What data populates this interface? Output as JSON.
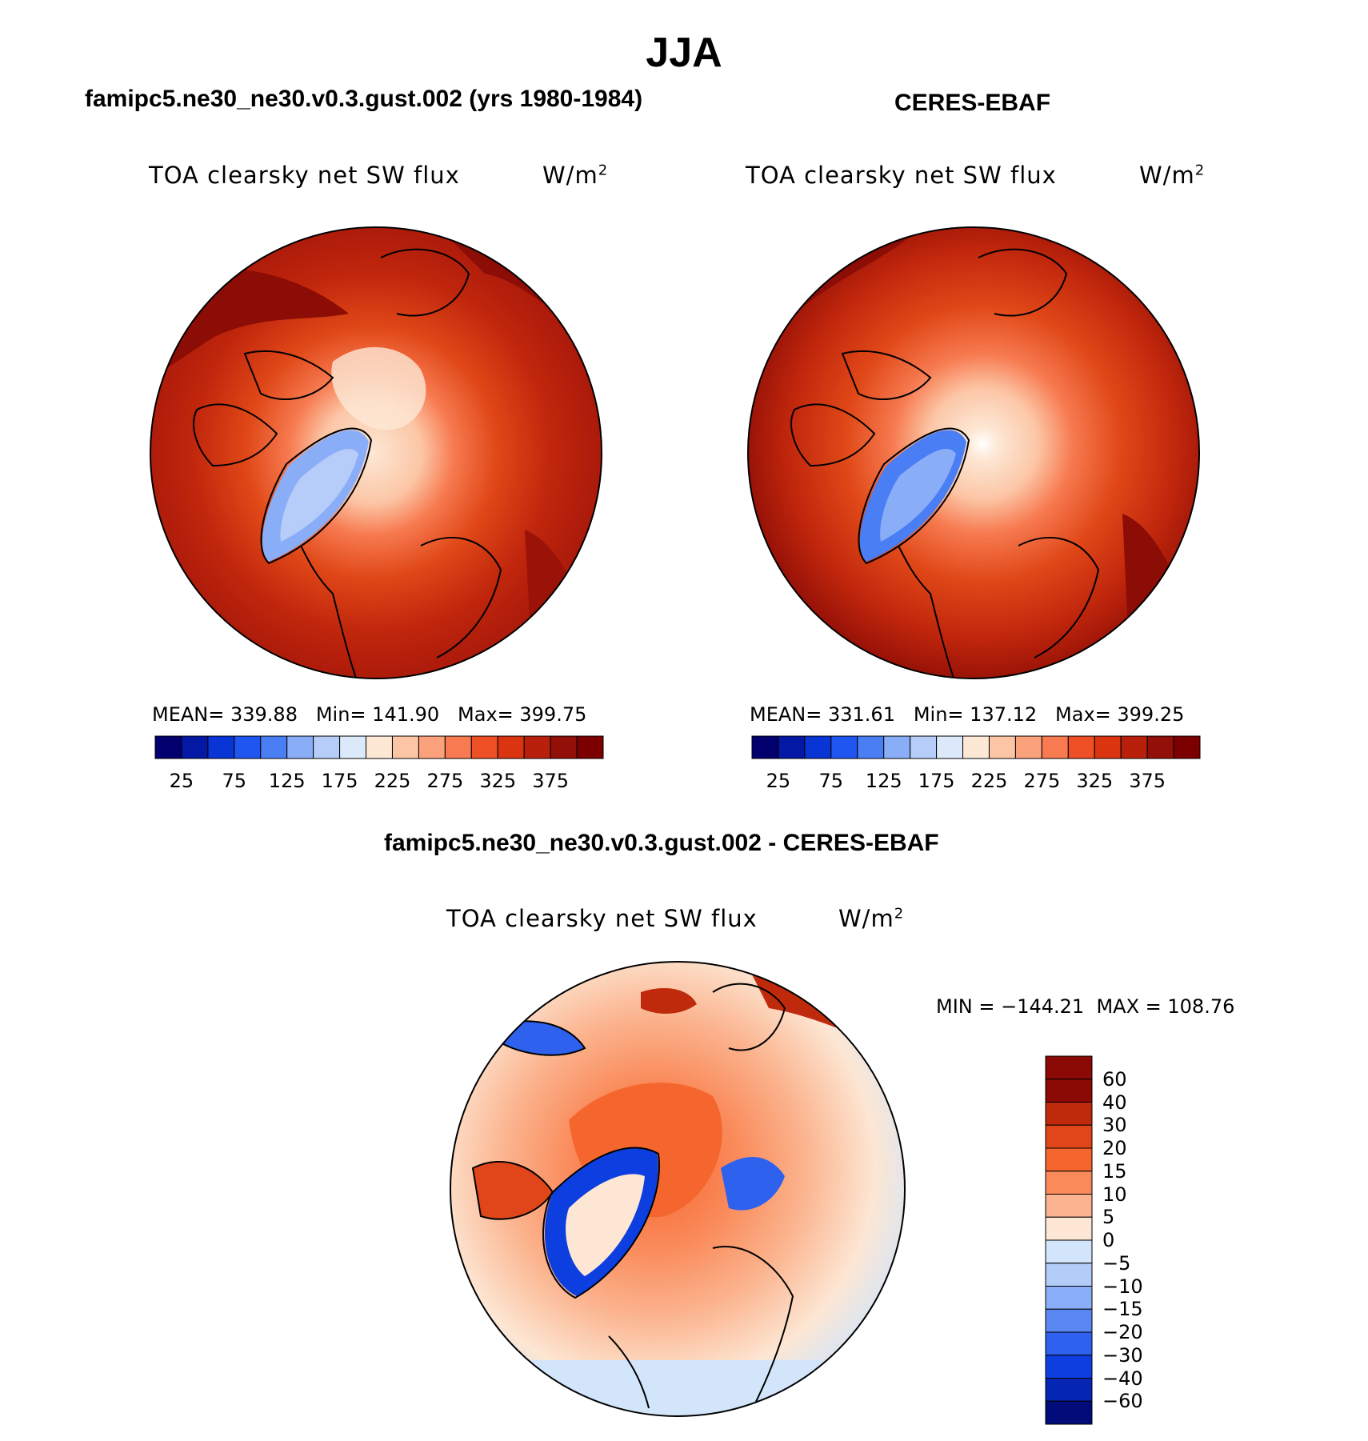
{
  "title": "JJA",
  "panels": [
    {
      "label": "famipc5.ne30_ne30.v0.3.gust.002 (yrs 1980-1984)",
      "variable": "TOA clearsky net SW flux",
      "units": "W/m",
      "units_sup": "2",
      "stats": "MEAN= 339.88   Min= 141.90   Max= 399.75"
    },
    {
      "label": "CERES-EBAF",
      "variable": "TOA clearsky net SW flux",
      "units": "W/m",
      "units_sup": "2",
      "stats": "MEAN= 331.61   Min= 137.12   Max= 399.25"
    }
  ],
  "diff_panel": {
    "label": "famipc5.ne30_ne30.v0.3.gust.002 - CERES-EBAF",
    "variable": "TOA clearsky net SW flux",
    "units": "W/m",
    "units_sup": "2",
    "stats": "MIN = −144.21  MAX = 108.76"
  },
  "colorbar_abs": {
    "colors": [
      "#02006f",
      "#0418a6",
      "#0a35d6",
      "#1f55f0",
      "#4a7ef5",
      "#8aadf8",
      "#b6cdf9",
      "#dce9fb",
      "#fde8d6",
      "#fcc6a6",
      "#fba27c",
      "#f77a50",
      "#ef4f24",
      "#da3510",
      "#b8200b",
      "#931009",
      "#7d0000"
    ],
    "labels": [
      "25",
      "75",
      "125",
      "175",
      "225",
      "275",
      "325",
      "375"
    ]
  },
  "colorbar_diff": {
    "colors": [
      "#8b0a05",
      "#c02a0c",
      "#e0461a",
      "#f5662e",
      "#fa8a5a",
      "#fbb48f",
      "#fde6d3",
      "#d2e5fa",
      "#b2cdf8",
      "#8aaef7",
      "#5a88f3",
      "#2e61ee",
      "#0d3fe0",
      "#0426b2",
      "#010c7a"
    ],
    "labels": [
      "60",
      "40",
      "30",
      "20",
      "15",
      "10",
      "5",
      "0",
      "−5",
      "−10",
      "−15",
      "−20",
      "−30",
      "−40",
      "−60"
    ]
  },
  "chart_data": {
    "type": "heatmap",
    "projection": "north polar stereographic",
    "season": "JJA",
    "maps": [
      {
        "name": "famipc5.ne30_ne30.v0.3.gust.002 (yrs 1980-1984)",
        "mean": 339.88,
        "min": 141.9,
        "max": 399.75,
        "levels": [
          25,
          50,
          75,
          100,
          125,
          150,
          175,
          200,
          225,
          250,
          275,
          300,
          325,
          350,
          375,
          400
        ]
      },
      {
        "name": "CERES-EBAF",
        "mean": 331.61,
        "min": 137.12,
        "max": 399.25,
        "levels": [
          25,
          50,
          75,
          100,
          125,
          150,
          175,
          200,
          225,
          250,
          275,
          300,
          325,
          350,
          375,
          400
        ]
      },
      {
        "name": "famipc5.ne30_ne30.v0.3.gust.002 - CERES-EBAF",
        "min": -144.21,
        "max": 108.76,
        "levels": [
          -60,
          -40,
          -30,
          -20,
          -15,
          -10,
          -5,
          0,
          5,
          10,
          15,
          20,
          30,
          40,
          60
        ]
      }
    ]
  }
}
